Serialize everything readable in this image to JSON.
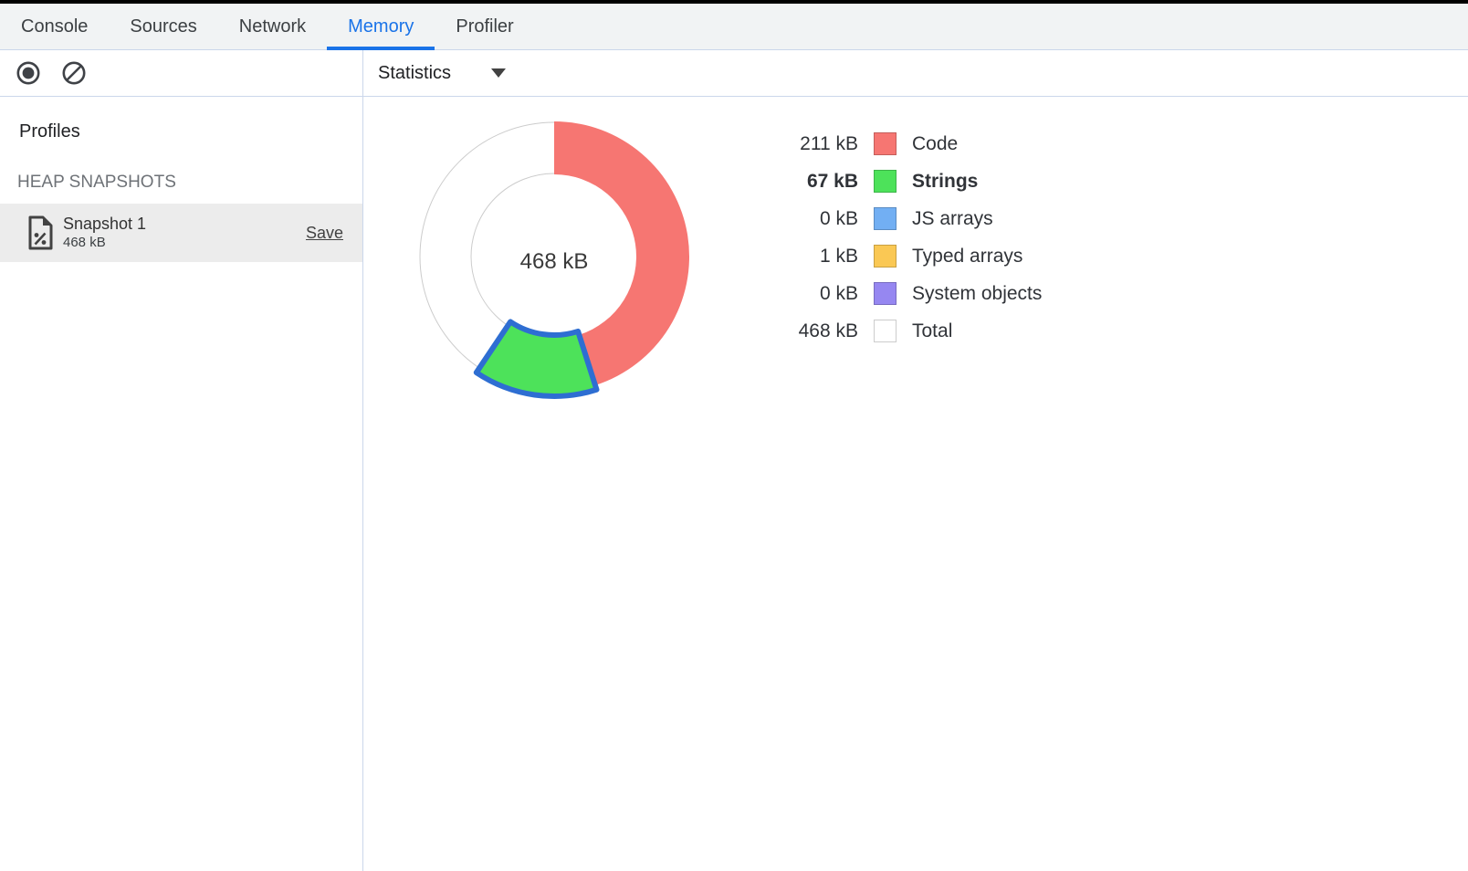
{
  "tab_bar": {
    "tabs": [
      {
        "label": "Console",
        "active": false
      },
      {
        "label": "Sources",
        "active": false
      },
      {
        "label": "Network",
        "active": false
      },
      {
        "label": "Memory",
        "active": true
      },
      {
        "label": "Profiler",
        "active": false
      }
    ]
  },
  "toolbar": {
    "record_icon": "record-icon",
    "clear_icon": "block-icon",
    "statistics_label": "Statistics",
    "caret_icon": "caret-down-icon"
  },
  "sidebar": {
    "profiles_title": "Profiles",
    "heap_section_title": "HEAP SNAPSHOTS",
    "snapshot": {
      "icon": "document-percent-icon",
      "title": "Snapshot 1",
      "size": "468 kB",
      "save_label": "Save",
      "selected": true
    }
  },
  "chart_data": {
    "type": "pie",
    "center_label": "468 kB",
    "total_kb": 468,
    "unit": "kB",
    "legend_position": "right",
    "segments": [
      {
        "label": "Code",
        "value_kb": 211,
        "display": "211 kB",
        "color": "#f67672",
        "selected": false
      },
      {
        "label": "Strings",
        "value_kb": 67,
        "display": "67 kB",
        "color": "#4de25a",
        "selected": true
      },
      {
        "label": "JS arrays",
        "value_kb": 0,
        "display": "0 kB",
        "color": "#72aff3",
        "selected": false
      },
      {
        "label": "Typed arrays",
        "value_kb": 1,
        "display": "1 kB",
        "color": "#fac854",
        "selected": false
      },
      {
        "label": "System objects",
        "value_kb": 0,
        "display": "0 kB",
        "color": "#9687f1",
        "selected": false
      },
      {
        "label": "Total",
        "value_kb": 468,
        "display": "468 kB",
        "color": "#ffffff",
        "selected": false,
        "is_total": true
      }
    ],
    "selection_stroke": "#2e6ed2",
    "ring_outline": "#cccccc"
  },
  "colors": {
    "accent_blue": "#1a73e8",
    "divider": "#cbd7eb",
    "tab_bar_bg": "#f1f3f4",
    "selected_row_bg": "#ececec"
  }
}
